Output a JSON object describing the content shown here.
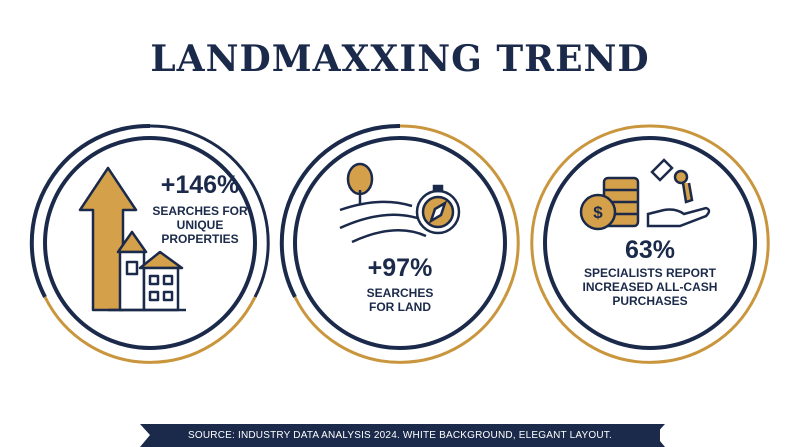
{
  "header": {
    "title": "LANDMAXXING TREND"
  },
  "stats": [
    {
      "value": "+146%",
      "label": "SEARCHES FOR UNIQUE PROPERTIES"
    },
    {
      "value": "+97%",
      "label": "SEARCHES FOR LAND"
    },
    {
      "value": "63%",
      "label": "SPECIALISTS REPORT INCREASED ALL-CASH PURCHASES"
    }
  ],
  "footer": {
    "source": "SOURCE: INDUSTRY DATA ANALYSIS 2024. WHITE BACKGROUND, ELEGANT LAYOUT."
  }
}
